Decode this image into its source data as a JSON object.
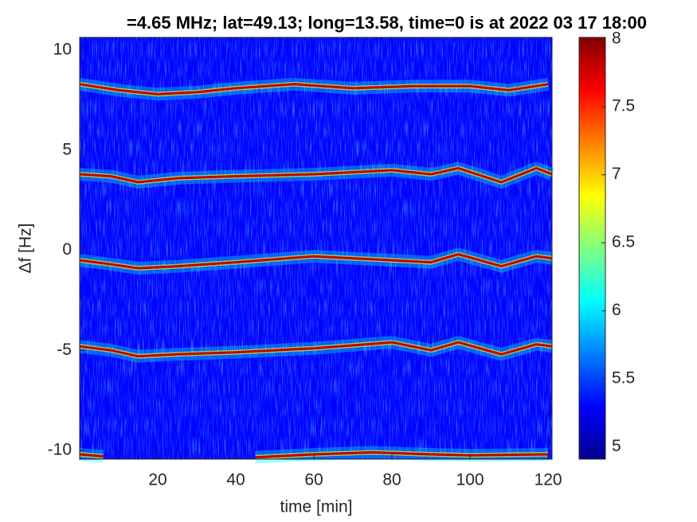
{
  "chart_data": {
    "type": "spectrogram",
    "title": "=4.65 MHz;  lat=49.13; long=13.58, time=0 is at 2022 03 17 18:00",
    "x_label": "time [min]",
    "y_label": "Δf [Hz]",
    "xlim": [
      0,
      121
    ],
    "ylim": [
      -10.44,
      10.64
    ],
    "xticks": [
      20,
      40,
      60,
      80,
      100,
      120
    ],
    "yticks": [
      -10,
      -5,
      0,
      5,
      10
    ],
    "clim": [
      4.91,
      8.01
    ],
    "cticks": [
      5,
      5.5,
      6,
      6.5,
      7,
      7.5,
      8
    ],
    "colormap": [
      "#00008f",
      "#0000ff",
      "#0080ff",
      "#00ffff",
      "#80ff80",
      "#ffff00",
      "#ff8000",
      "#ff0000",
      "#800000"
    ],
    "series": [
      {
        "color": "#c00000",
        "x": [
          0,
          10,
          20,
          30,
          40,
          55,
          70,
          85,
          100,
          110,
          120
        ],
        "values": [
          8.3,
          8.0,
          7.8,
          7.9,
          8.1,
          8.3,
          8.1,
          8.2,
          8.2,
          8.0,
          8.3
        ]
      },
      {
        "color": "#c00000",
        "x": [
          0,
          8,
          15,
          25,
          40,
          60,
          80,
          90,
          97,
          108,
          117,
          121
        ],
        "values": [
          3.8,
          3.7,
          3.4,
          3.6,
          3.7,
          3.8,
          4.0,
          3.8,
          4.1,
          3.4,
          4.1,
          3.8
        ]
      },
      {
        "color": "#c00000",
        "x": [
          0,
          8,
          15,
          25,
          40,
          60,
          80,
          90,
          97,
          108,
          117,
          121
        ],
        "values": [
          -0.5,
          -0.7,
          -0.9,
          -0.8,
          -0.6,
          -0.3,
          -0.5,
          -0.6,
          -0.2,
          -0.8,
          -0.3,
          -0.4
        ]
      },
      {
        "color": "#c00000",
        "x": [
          0,
          8,
          15,
          25,
          40,
          60,
          80,
          90,
          97,
          108,
          117,
          121
        ],
        "values": [
          -4.8,
          -5.0,
          -5.3,
          -5.2,
          -5.1,
          -4.9,
          -4.6,
          -5.0,
          -4.6,
          -5.2,
          -4.7,
          -4.8
        ]
      },
      {
        "color": "#c00000",
        "x": [
          0,
          6,
          20,
          45,
          60,
          75,
          90,
          100,
          120
        ],
        "values": [
          -10.2,
          -10.3,
          null,
          -10.35,
          -10.2,
          -10.1,
          -10.2,
          -10.25,
          -10.2
        ]
      }
    ]
  }
}
